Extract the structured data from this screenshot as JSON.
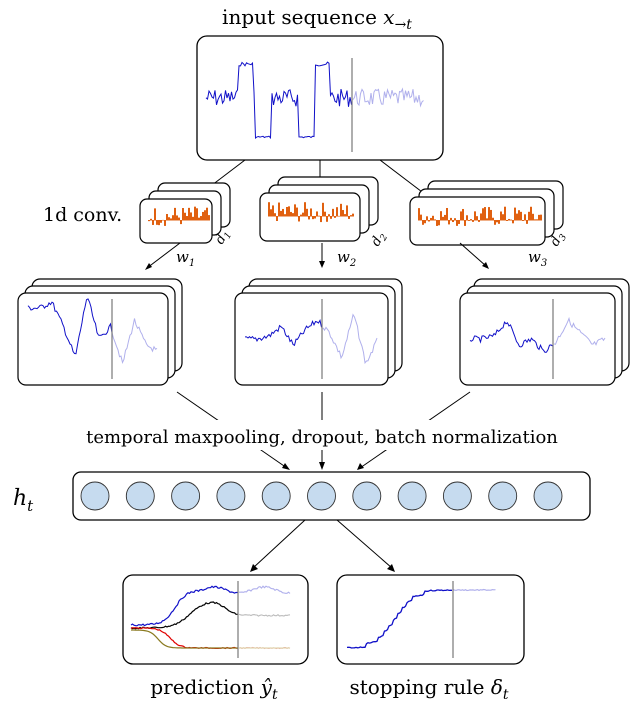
{
  "title": {
    "prefix": "input sequence ",
    "var": "x",
    "sub": "→t"
  },
  "conv_label": "1d conv.",
  "branches": [
    {
      "w": "w",
      "w_sub": "1",
      "d": "d",
      "d_sub": "1"
    },
    {
      "w": "w",
      "w_sub": "2",
      "d": "d",
      "d_sub": "2"
    },
    {
      "w": "w",
      "w_sub": "3",
      "d": "d",
      "d_sub": "3"
    }
  ],
  "pooling_label": "temporal maxpooling, dropout, batch normalization",
  "hidden": {
    "var": "h",
    "sub": "t",
    "node_count": 11,
    "node_color": "#c6dbef"
  },
  "outputs": {
    "prediction": {
      "prefix": "prediction ",
      "var": "ŷ",
      "sub": "t"
    },
    "stopping": {
      "prefix": "stopping rule ",
      "var": "δ",
      "sub": "t"
    }
  },
  "colors": {
    "signal": "#1010c8",
    "signal_faded": "#b0b0ec",
    "kernel": "#e06010",
    "pred_black": "#000000",
    "pred_red": "#e00000",
    "pred_olive": "#8a7a20"
  }
}
